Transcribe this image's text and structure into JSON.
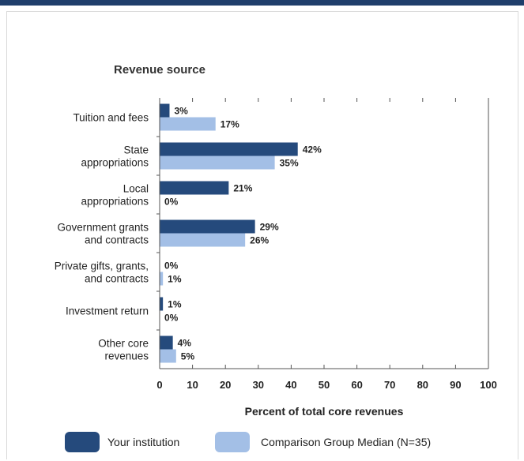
{
  "chart_data": {
    "type": "bar",
    "orientation": "horizontal",
    "title": "Revenue source",
    "xlabel": "Percent of total core revenues",
    "xlim": [
      0,
      100
    ],
    "xticks": [
      "0",
      "10",
      "20",
      "30",
      "40",
      "50",
      "60",
      "70",
      "80",
      "90",
      "100"
    ],
    "categories": [
      [
        "Tuition and fees"
      ],
      [
        "State",
        "appropriations"
      ],
      [
        "Local",
        "appropriations"
      ],
      [
        "Government grants",
        "and contracts"
      ],
      [
        "Private gifts, grants,",
        "and contracts"
      ],
      [
        "Investment return"
      ],
      [
        "Other core",
        "revenues"
      ]
    ],
    "series": [
      {
        "name": "Your institution",
        "color": "#254a7c",
        "values": [
          3,
          42,
          21,
          29,
          0,
          1,
          4
        ],
        "labels": [
          "3%",
          "42%",
          "21%",
          "29%",
          "0%",
          "1%",
          "4%"
        ]
      },
      {
        "name": "Comparison Group Median (N=35)",
        "color": "#a3bfe6",
        "values": [
          17,
          35,
          0,
          26,
          1,
          0,
          5
        ],
        "labels": [
          "17%",
          "35%",
          "0%",
          "26%",
          "1%",
          "0%",
          "5%"
        ]
      }
    ],
    "grid": false,
    "legend": "bottom"
  }
}
